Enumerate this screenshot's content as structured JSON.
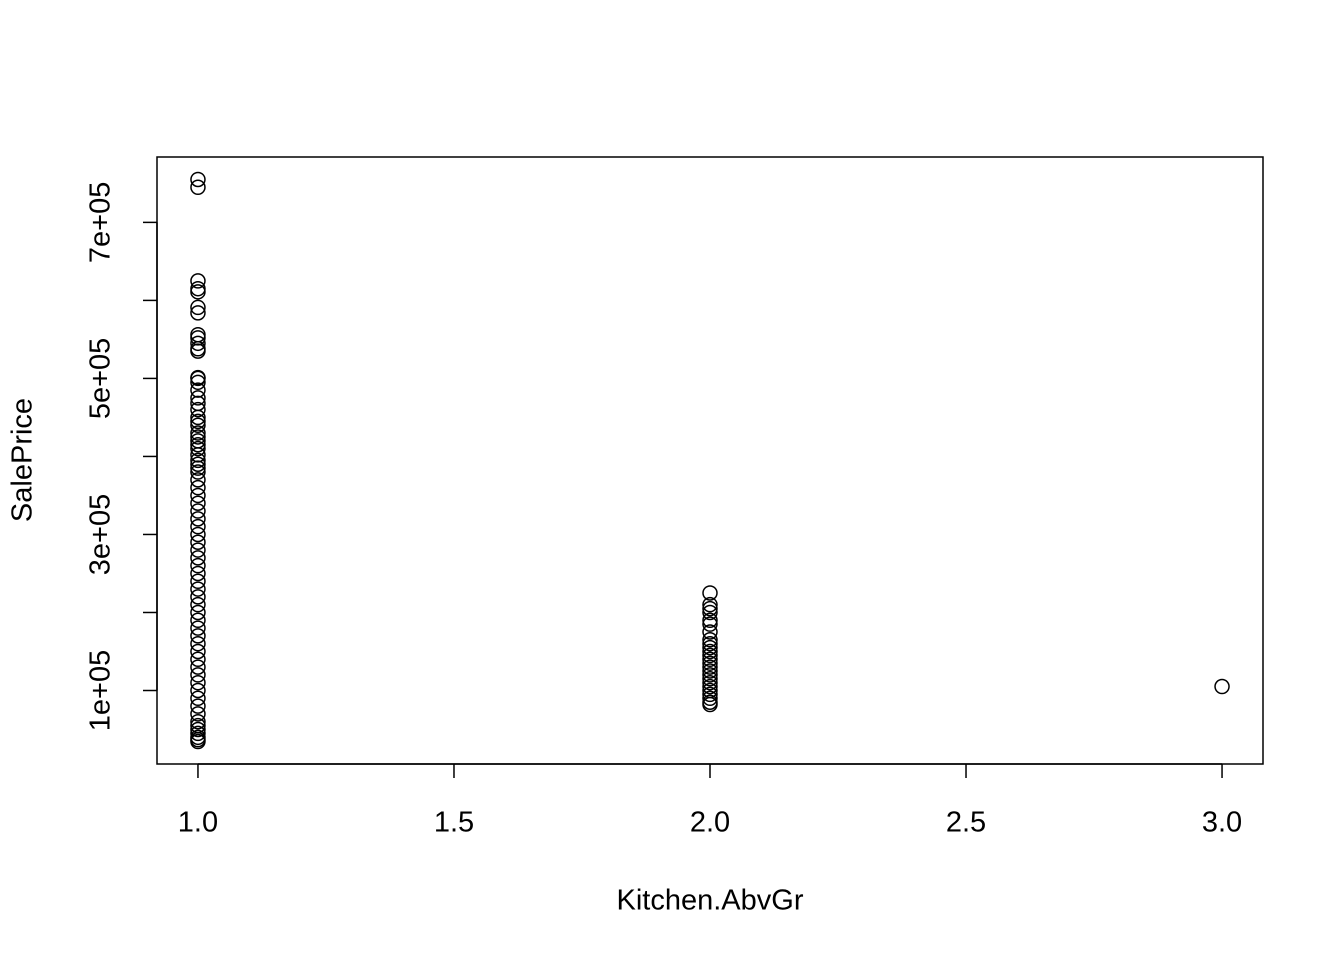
{
  "chart_data": {
    "type": "scatter",
    "x_label": "Kitchen.AbvGr",
    "y_label": "SalePrice",
    "x": [
      1,
      1,
      1,
      1,
      1,
      1,
      1,
      1,
      1,
      1,
      1,
      1,
      1,
      1,
      1,
      1,
      1,
      1,
      1,
      1,
      1,
      1,
      1,
      1,
      1,
      1,
      1,
      1,
      1,
      1,
      1,
      1,
      1,
      1,
      1,
      1,
      1,
      1,
      1,
      1,
      1,
      1,
      1,
      1,
      1,
      1,
      1,
      1,
      1,
      1,
      1,
      1,
      1,
      1,
      1,
      1,
      1,
      1,
      1,
      1,
      1,
      1,
      1,
      1,
      1,
      1,
      1,
      1,
      1,
      1,
      2,
      2,
      2,
      2,
      2,
      2,
      2,
      2,
      2,
      2,
      2,
      2,
      2,
      2,
      2,
      2,
      2,
      2,
      2,
      2,
      2,
      2,
      2,
      2,
      2,
      3
    ],
    "values": [
      755000,
      745000,
      625000,
      615000,
      611000,
      591000,
      584000,
      556000,
      552000,
      545000,
      538000,
      535000,
      501000,
      500000,
      495000,
      485000,
      475000,
      468000,
      460000,
      450000,
      445000,
      440000,
      430000,
      425000,
      420000,
      415000,
      410000,
      402000,
      395000,
      390000,
      385000,
      380000,
      370000,
      360000,
      350000,
      340000,
      330000,
      320000,
      310000,
      300000,
      290000,
      280000,
      270000,
      260000,
      250000,
      240000,
      230000,
      220000,
      210000,
      200000,
      190000,
      180000,
      170000,
      160000,
      150000,
      140000,
      130000,
      120000,
      110000,
      100000,
      90000,
      80000,
      70000,
      60000,
      55000,
      50000,
      45000,
      40000,
      37000,
      34600,
      225000,
      210000,
      205000,
      200000,
      190000,
      185000,
      175000,
      165000,
      160000,
      155000,
      150000,
      145000,
      140000,
      135000,
      130000,
      125000,
      120000,
      115000,
      110000,
      105000,
      100000,
      95000,
      90000,
      85000,
      82000,
      105100
    ],
    "color": "#000000",
    "xlim": [
      0.92,
      3.08
    ],
    "xticks": [
      {
        "value": 1,
        "label": "1.0"
      },
      1.5,
      {
        "value": 2,
        "label": "2.0"
      },
      2.5,
      {
        "value": 3,
        "label": "3.0"
      }
    ],
    "ylim": [
      5800,
      783800
    ],
    "yticks": [
      {
        "value": 100000,
        "label": "1e+05"
      },
      {
        "value": 300000,
        "label": "3e+05"
      },
      {
        "value": 500000,
        "label": "5e+05"
      },
      {
        "value": 700000,
        "label": "7e+05"
      }
    ],
    "yminor_ticks": [
      200000,
      400000,
      600000
    ],
    "grid": false
  }
}
